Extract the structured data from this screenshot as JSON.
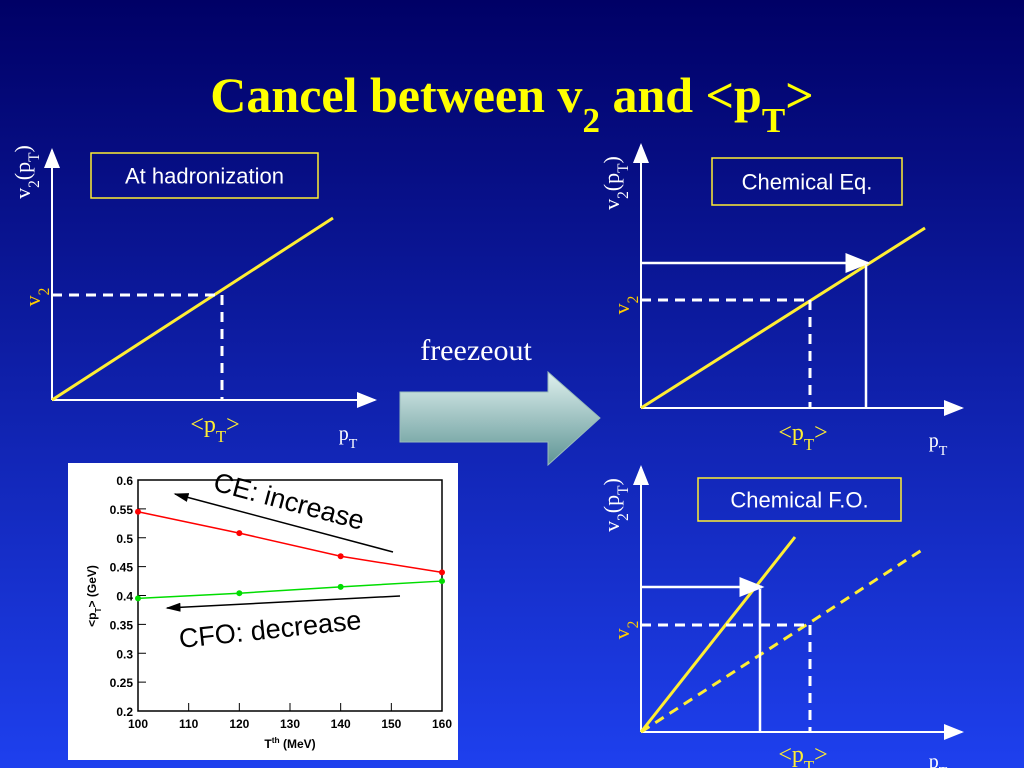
{
  "title": [
    "Cancel between v",
    "2",
    " and <p",
    "T",
    ">"
  ],
  "arrow_label": "freezeout",
  "panels": [
    {
      "box_label": "At hadronization",
      "y_axis_label": [
        "v",
        "2",
        "(p",
        "T",
        ")"
      ],
      "y_marker": [
        "v",
        "2"
      ],
      "x_marker": [
        "<p",
        "T",
        ">"
      ],
      "x_axis_label": [
        "p",
        "T"
      ]
    },
    {
      "box_label": "Chemical Eq.",
      "y_axis_label": [
        "v",
        "2",
        "(p",
        "T",
        ")"
      ],
      "y_marker": [
        "v",
        "2"
      ],
      "x_marker": [
        "<p",
        "T",
        ">"
      ],
      "x_axis_label": [
        "p",
        "T"
      ]
    },
    {
      "box_label": "Chemical F.O.",
      "y_axis_label": [
        "v",
        "2",
        "(p",
        "T",
        ")"
      ],
      "y_marker": [
        "v",
        "2"
      ],
      "x_marker": [
        "<p",
        "T",
        ">"
      ],
      "x_axis_label": [
        "p",
        "T"
      ]
    }
  ],
  "chart_data": {
    "type": "line",
    "x_label": [
      "T",
      "th",
      " (MeV)"
    ],
    "y_label": [
      "<p",
      "T",
      "> (GeV)"
    ],
    "x": [
      100,
      120,
      140,
      160
    ],
    "series": [
      {
        "color": "#ff0000",
        "values": [
          0.545,
          0.508,
          0.468,
          0.44
        ]
      },
      {
        "color": "#00dd00",
        "values": [
          0.395,
          0.404,
          0.415,
          0.425
        ]
      }
    ],
    "xlim": [
      100,
      160
    ],
    "xticks": [
      100,
      110,
      120,
      130,
      140,
      150,
      160
    ],
    "ylim": [
      0.2,
      0.6
    ],
    "yticks": [
      0.2,
      0.25,
      0.3,
      0.35,
      0.4,
      0.45,
      0.5,
      0.55,
      0.6
    ],
    "annotations": [
      "CE: increase",
      "CFO: decrease"
    ]
  }
}
